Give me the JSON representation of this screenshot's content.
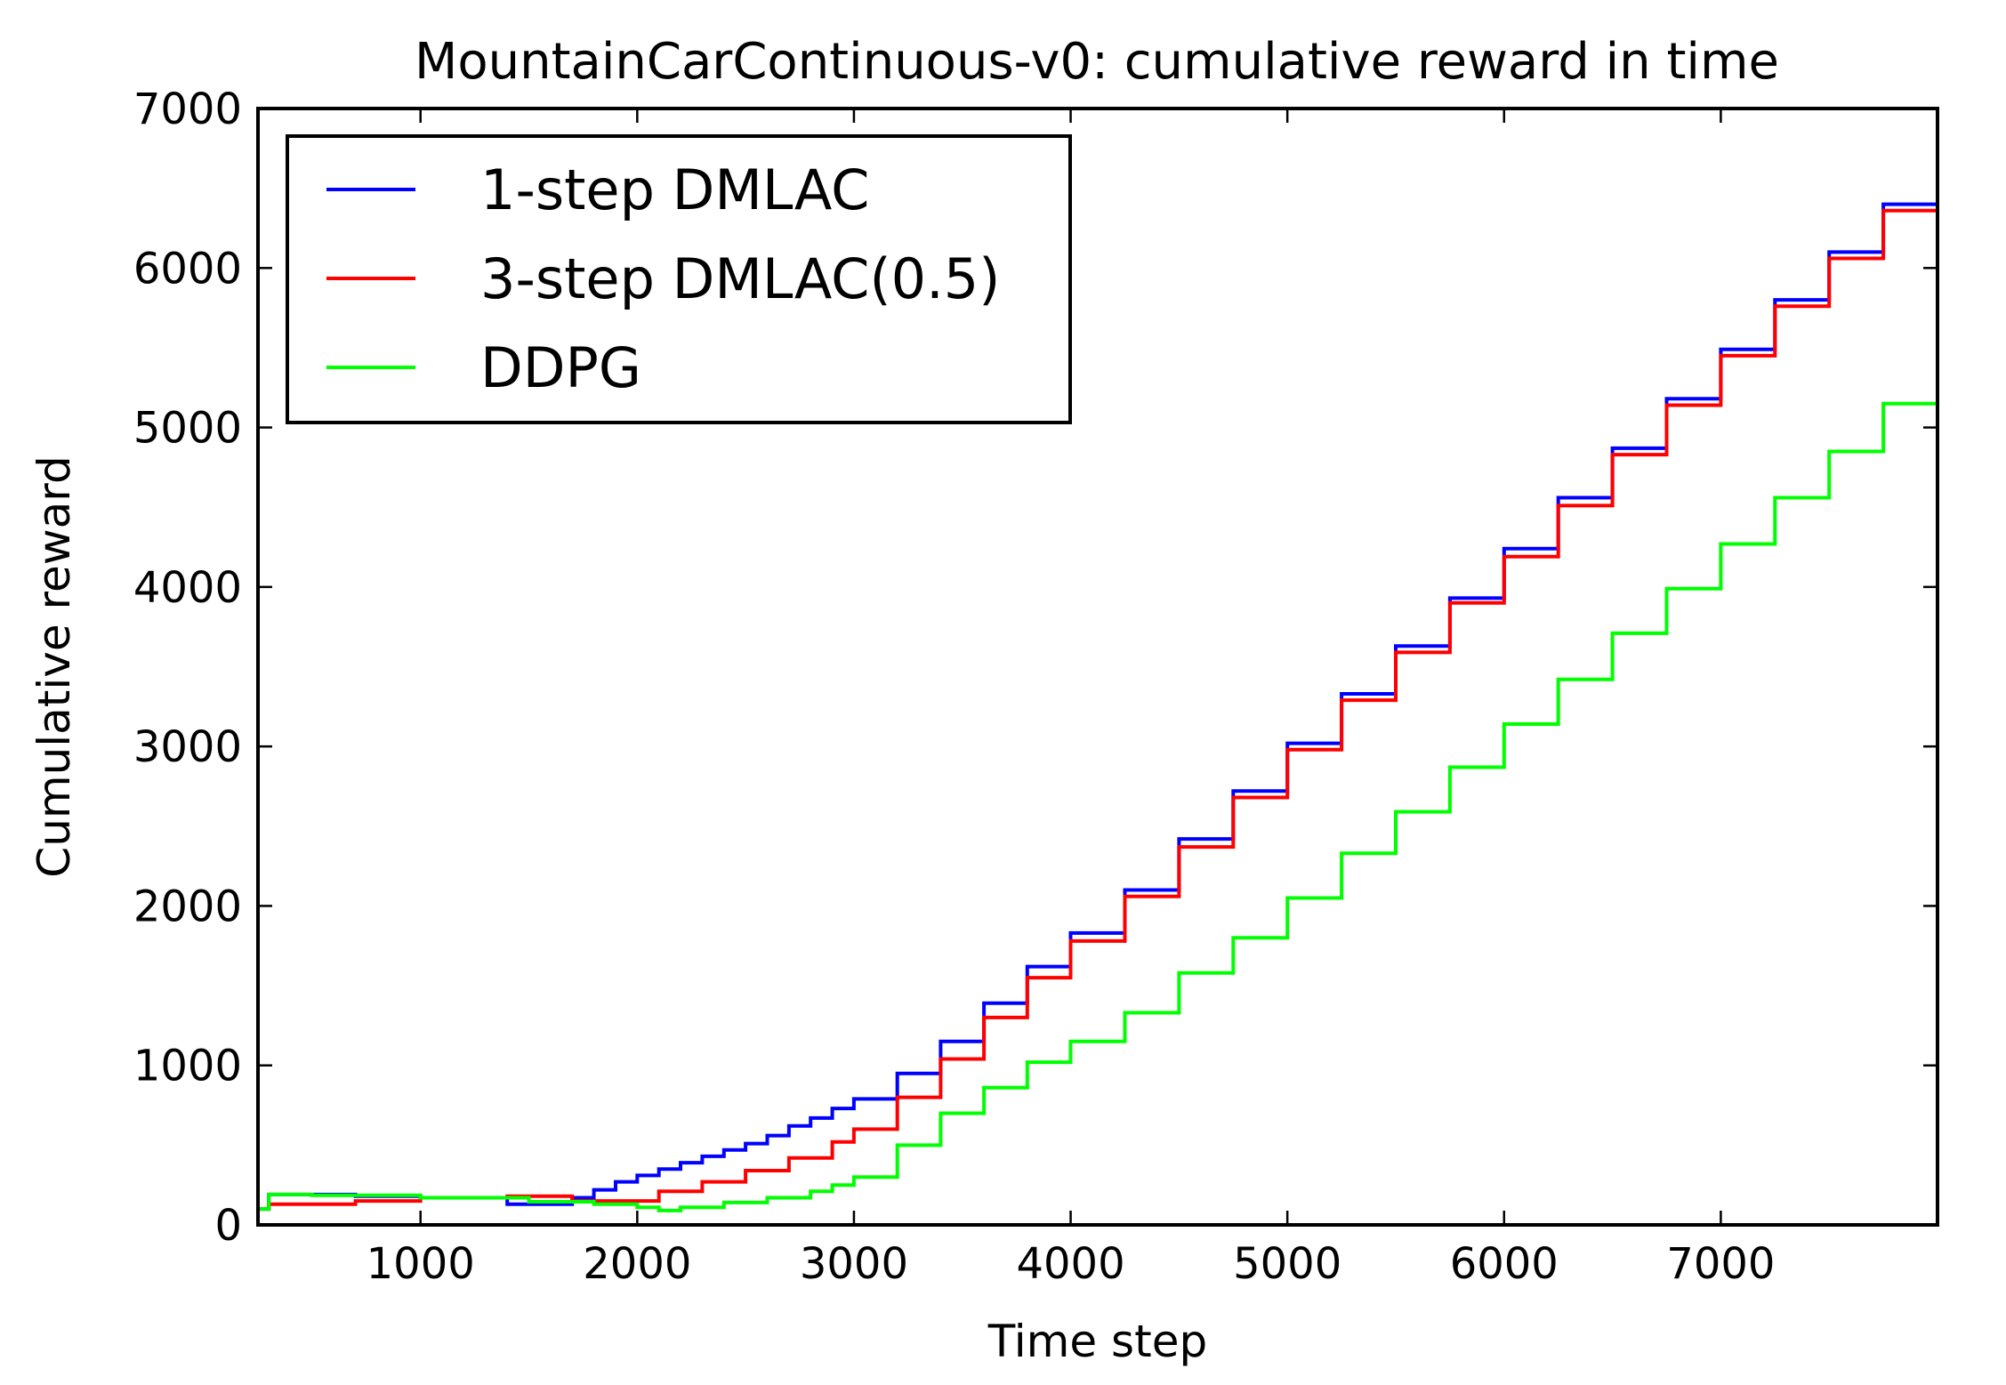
{
  "chart_data": {
    "type": "line",
    "title": "MountainCarContinuous-v0: cumulative reward in time",
    "xlabel": "Time step",
    "ylabel": "Cumulative reward",
    "xlim": [
      250,
      8000
    ],
    "ylim": [
      0,
      7000
    ],
    "xticks": [
      1000,
      2000,
      3000,
      4000,
      5000,
      6000,
      7000
    ],
    "xticklabels": [
      "1000",
      "2000",
      "3000",
      "4000",
      "5000",
      "6000",
      "7000"
    ],
    "yticks": [
      0,
      1000,
      2000,
      3000,
      4000,
      5000,
      6000,
      7000
    ],
    "yticklabels": [
      "0",
      "1000",
      "2000",
      "3000",
      "4000",
      "5000",
      "6000",
      "7000"
    ],
    "grid": false,
    "legend_position": "upper-left",
    "series": [
      {
        "name": "1-step DMLAC",
        "color": "#0000ff",
        "x": [
          250,
          300,
          700,
          1000,
          1400,
          1700,
          1800,
          1900,
          2000,
          2100,
          2200,
          2300,
          2400,
          2500,
          2600,
          2700,
          2800,
          2900,
          3000,
          3200,
          3400,
          3600,
          3800,
          4000,
          4250,
          4500,
          4750,
          5000,
          5250,
          5500,
          5750,
          6000,
          6250,
          6500,
          6750,
          7000,
          7250,
          7500,
          7750,
          8000
        ],
        "y": [
          100,
          190,
          180,
          170,
          130,
          170,
          220,
          270,
          310,
          350,
          390,
          430,
          470,
          510,
          560,
          620,
          670,
          730,
          790,
          950,
          1150,
          1390,
          1620,
          1830,
          2100,
          2420,
          2720,
          3020,
          3330,
          3630,
          3930,
          4240,
          4560,
          4870,
          5180,
          5490,
          5800,
          6100,
          6400,
          6700
        ]
      },
      {
        "name": "3-step DMLAC(0.5)",
        "color": "#ff0000",
        "x": [
          250,
          300,
          700,
          1000,
          1400,
          1700,
          1900,
          2100,
          2300,
          2500,
          2700,
          2900,
          3000,
          3200,
          3400,
          3600,
          3800,
          4000,
          4250,
          4500,
          4750,
          5000,
          5250,
          5500,
          5750,
          6000,
          6250,
          6500,
          6750,
          7000,
          7250,
          7500,
          7750,
          8000
        ],
        "y": [
          100,
          130,
          150,
          170,
          180,
          150,
          150,
          210,
          270,
          340,
          420,
          520,
          600,
          800,
          1040,
          1300,
          1550,
          1780,
          2060,
          2370,
          2680,
          2980,
          3290,
          3590,
          3900,
          4190,
          4510,
          4830,
          5140,
          5450,
          5760,
          6060,
          6360,
          6650
        ]
      },
      {
        "name": "DDPG",
        "color": "#00ff00",
        "x": [
          250,
          300,
          500,
          1000,
          1500,
          1800,
          2000,
          2100,
          2200,
          2400,
          2600,
          2800,
          2900,
          3000,
          3200,
          3400,
          3600,
          3800,
          4000,
          4250,
          4500,
          4750,
          5000,
          5250,
          5500,
          5750,
          6000,
          6250,
          6500,
          6750,
          7000,
          7250,
          7500,
          7750,
          8000
        ],
        "y": [
          100,
          190,
          185,
          170,
          145,
          130,
          110,
          90,
          110,
          140,
          170,
          210,
          250,
          300,
          500,
          700,
          860,
          1020,
          1150,
          1330,
          1580,
          1800,
          2050,
          2330,
          2590,
          2870,
          3140,
          3420,
          3710,
          3990,
          4270,
          4560,
          4850,
          5150,
          5480
        ]
      }
    ]
  }
}
